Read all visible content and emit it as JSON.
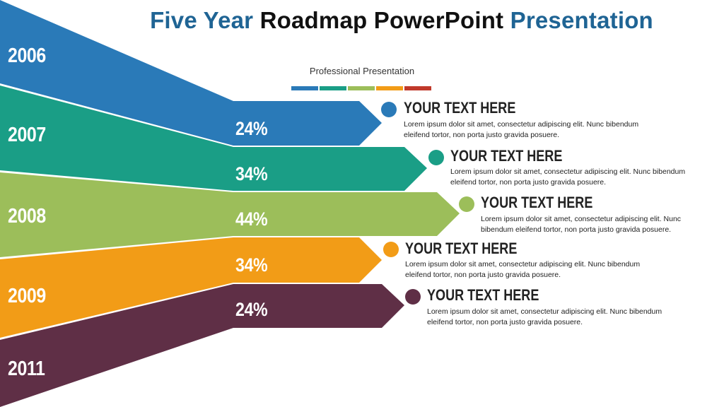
{
  "header": {
    "title_part1": "Five Year",
    "title_part2": "Roadmap PowerPoint",
    "title_part3": "Presentation",
    "subtitle": "Professional Presentation"
  },
  "colors": {
    "blue": "#2a7ab8",
    "teal": "#1a9e86",
    "green": "#9cbe5a",
    "orange": "#f29c17",
    "maroon": "#5f2f46",
    "red": "#c0392b",
    "title_blue": "#1f6494"
  },
  "colorbar": [
    "#2a7ab8",
    "#1a9e86",
    "#9cbe5a",
    "#f29c17",
    "#c0392b"
  ],
  "years": [
    "2006",
    "2007",
    "2008",
    "2009",
    "2011"
  ],
  "items": [
    {
      "percent": "24%",
      "heading": "YOUR TEXT HERE",
      "line1": "Lorem ipsum dolor sit amet, consectetur adipiscing elit. Nunc bibendum",
      "line2": "eleifend tortor, non porta justo gravida posuere."
    },
    {
      "percent": "34%",
      "heading": "YOUR TEXT HERE",
      "line1": "Lorem ipsum dolor sit amet, consectetur adipiscing elit. Nunc bibendum",
      "line2": "eleifend tortor, non porta justo gravida posuere."
    },
    {
      "percent": "44%",
      "heading": "YOUR TEXT HERE",
      "line1": "Lorem ipsum dolor sit amet, consectetur adipiscing elit. Nunc",
      "line2": "bibendum eleifend tortor, non porta justo gravida posuere."
    },
    {
      "percent": "34%",
      "heading": "YOUR TEXT HERE",
      "line1": "Lorem ipsum dolor sit amet, consectetur adipiscing elit. Nunc bibendum",
      "line2": "eleifend tortor, non porta justo gravida posuere."
    },
    {
      "percent": "24%",
      "heading": "YOUR TEXT HERE",
      "line1": "Lorem ipsum dolor sit amet, consectetur adipiscing elit. Nunc bibendum",
      "line2": "eleifend tortor, non porta justo gravida posuere."
    }
  ]
}
